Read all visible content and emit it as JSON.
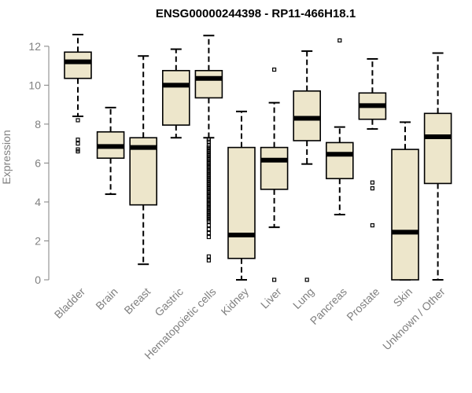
{
  "chart_data": {
    "type": "boxplot",
    "title": "ENSG00000244398 - RP11-466H18.1",
    "xlabel": "",
    "ylabel": "Expression",
    "ylim": [
      0,
      12.6
    ],
    "yticks": [
      0,
      2,
      4,
      6,
      8,
      10,
      12
    ],
    "box_color": "#ede6cb",
    "categories": [
      "Bladder",
      "Brain",
      "Breast",
      "Gastric",
      "Hematopoietic cells",
      "Kidney",
      "Liver",
      "Lung",
      "Pancreas",
      "Prostate",
      "Skin",
      "Unknown / Other"
    ],
    "boxes": [
      {
        "name": "Bladder",
        "whisker_low": 8.4,
        "q1": 10.35,
        "median": 11.2,
        "q3": 11.7,
        "whisker_high": 12.6,
        "outliers": [
          8.2,
          7.2,
          7.0,
          6.7,
          6.6
        ]
      },
      {
        "name": "Brain",
        "whisker_low": 4.4,
        "q1": 6.25,
        "median": 6.85,
        "q3": 7.6,
        "whisker_high": 8.85,
        "outliers": []
      },
      {
        "name": "Breast",
        "whisker_low": 0.8,
        "q1": 3.85,
        "median": 6.8,
        "q3": 7.3,
        "whisker_high": 11.5,
        "outliers": []
      },
      {
        "name": "Gastric",
        "whisker_low": 7.3,
        "q1": 7.95,
        "median": 10.0,
        "q3": 10.75,
        "whisker_high": 11.85,
        "outliers": []
      },
      {
        "name": "Hematopoietic cells",
        "whisker_low": 7.3,
        "q1": 9.35,
        "median": 10.35,
        "q3": 10.75,
        "whisker_high": 12.55,
        "outliers": [
          7.2,
          7.1,
          6.9,
          6.8,
          6.7,
          6.6,
          6.5,
          6.4,
          6.3,
          6.2,
          6.1,
          6.0,
          5.9,
          5.8,
          5.7,
          5.6,
          5.5,
          5.4,
          5.3,
          5.2,
          5.1,
          5.0,
          4.9,
          4.8,
          4.7,
          4.6,
          4.5,
          4.4,
          4.3,
          4.2,
          4.1,
          4.0,
          3.9,
          3.8,
          3.7,
          3.6,
          3.5,
          3.4,
          3.3,
          3.2,
          3.1,
          3.0,
          2.8,
          2.6,
          2.4,
          2.2,
          1.2,
          1.0
        ]
      },
      {
        "name": "Kidney",
        "whisker_low": 0.0,
        "q1": 1.1,
        "median": 2.3,
        "q3": 6.8,
        "whisker_high": 8.65,
        "outliers": []
      },
      {
        "name": "Liver",
        "whisker_low": 2.7,
        "q1": 4.65,
        "median": 6.15,
        "q3": 6.8,
        "whisker_high": 9.1,
        "outliers": [
          10.8,
          0.0
        ]
      },
      {
        "name": "Lung",
        "whisker_low": 5.95,
        "q1": 7.15,
        "median": 8.3,
        "q3": 9.7,
        "whisker_high": 11.75,
        "outliers": [
          0.0
        ]
      },
      {
        "name": "Pancreas",
        "whisker_low": 3.35,
        "q1": 5.2,
        "median": 6.45,
        "q3": 7.05,
        "whisker_high": 7.85,
        "outliers": [
          12.3
        ]
      },
      {
        "name": "Prostate",
        "whisker_low": 7.75,
        "q1": 8.25,
        "median": 8.95,
        "q3": 9.6,
        "whisker_high": 11.35,
        "outliers": [
          5.0,
          4.7,
          2.8
        ]
      },
      {
        "name": "Skin",
        "whisker_low": 0.0,
        "q1": 0.0,
        "median": 2.45,
        "q3": 6.7,
        "whisker_high": 8.1,
        "outliers": []
      },
      {
        "name": "Unknown / Other",
        "whisker_low": 0.0,
        "q1": 4.95,
        "median": 7.35,
        "q3": 8.55,
        "whisker_high": 11.65,
        "outliers": []
      }
    ]
  }
}
